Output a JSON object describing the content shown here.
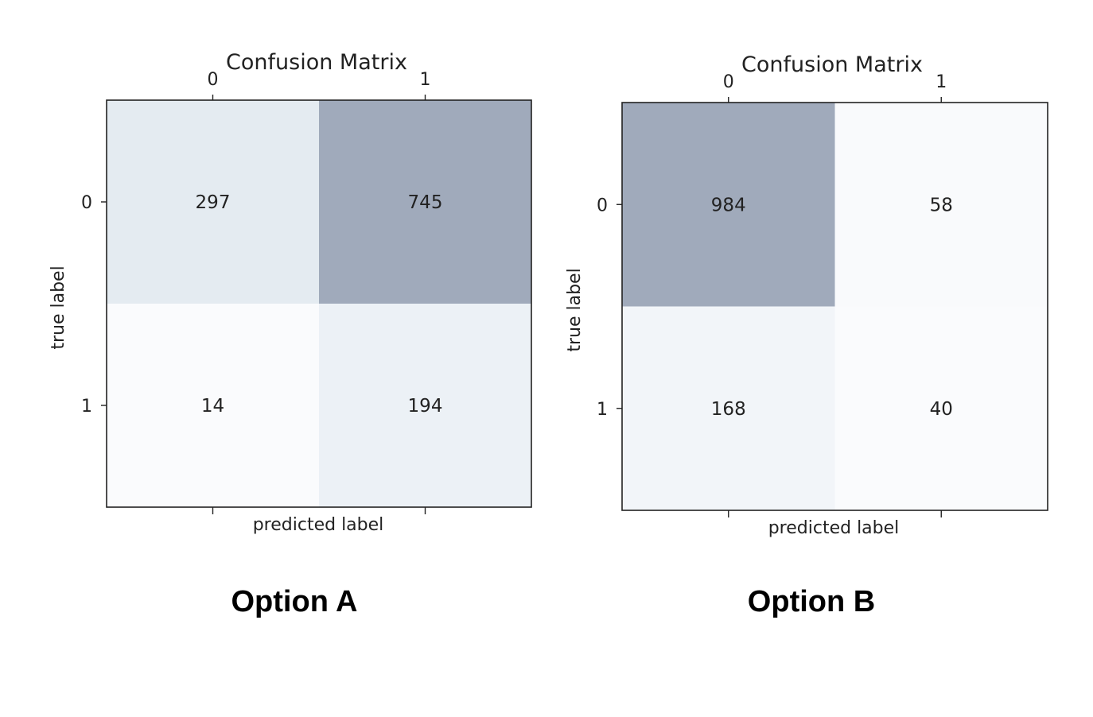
{
  "chart_data": [
    {
      "type": "heatmap",
      "title": "Confusion Matrix",
      "xlabel": "predicted label",
      "ylabel": "true label",
      "x_ticks": [
        "0",
        "1"
      ],
      "y_ticks": [
        "0",
        "1"
      ],
      "values": [
        [
          297,
          745
        ],
        [
          14,
          194
        ]
      ],
      "colormap": "Blues (alpha-blended, gray tint)",
      "caption": "Option A"
    },
    {
      "type": "heatmap",
      "title": "Confusion Matrix",
      "xlabel": "predicted label",
      "ylabel": "true label",
      "x_ticks": [
        "0",
        "1"
      ],
      "y_ticks": [
        "0",
        "1"
      ],
      "values": [
        [
          984,
          58
        ],
        [
          168,
          40
        ]
      ],
      "colormap": "Blues (alpha-blended, gray tint)",
      "caption": "Option B"
    }
  ],
  "colors": {
    "min": "#fafbfd",
    "max": "#a0aabb"
  }
}
